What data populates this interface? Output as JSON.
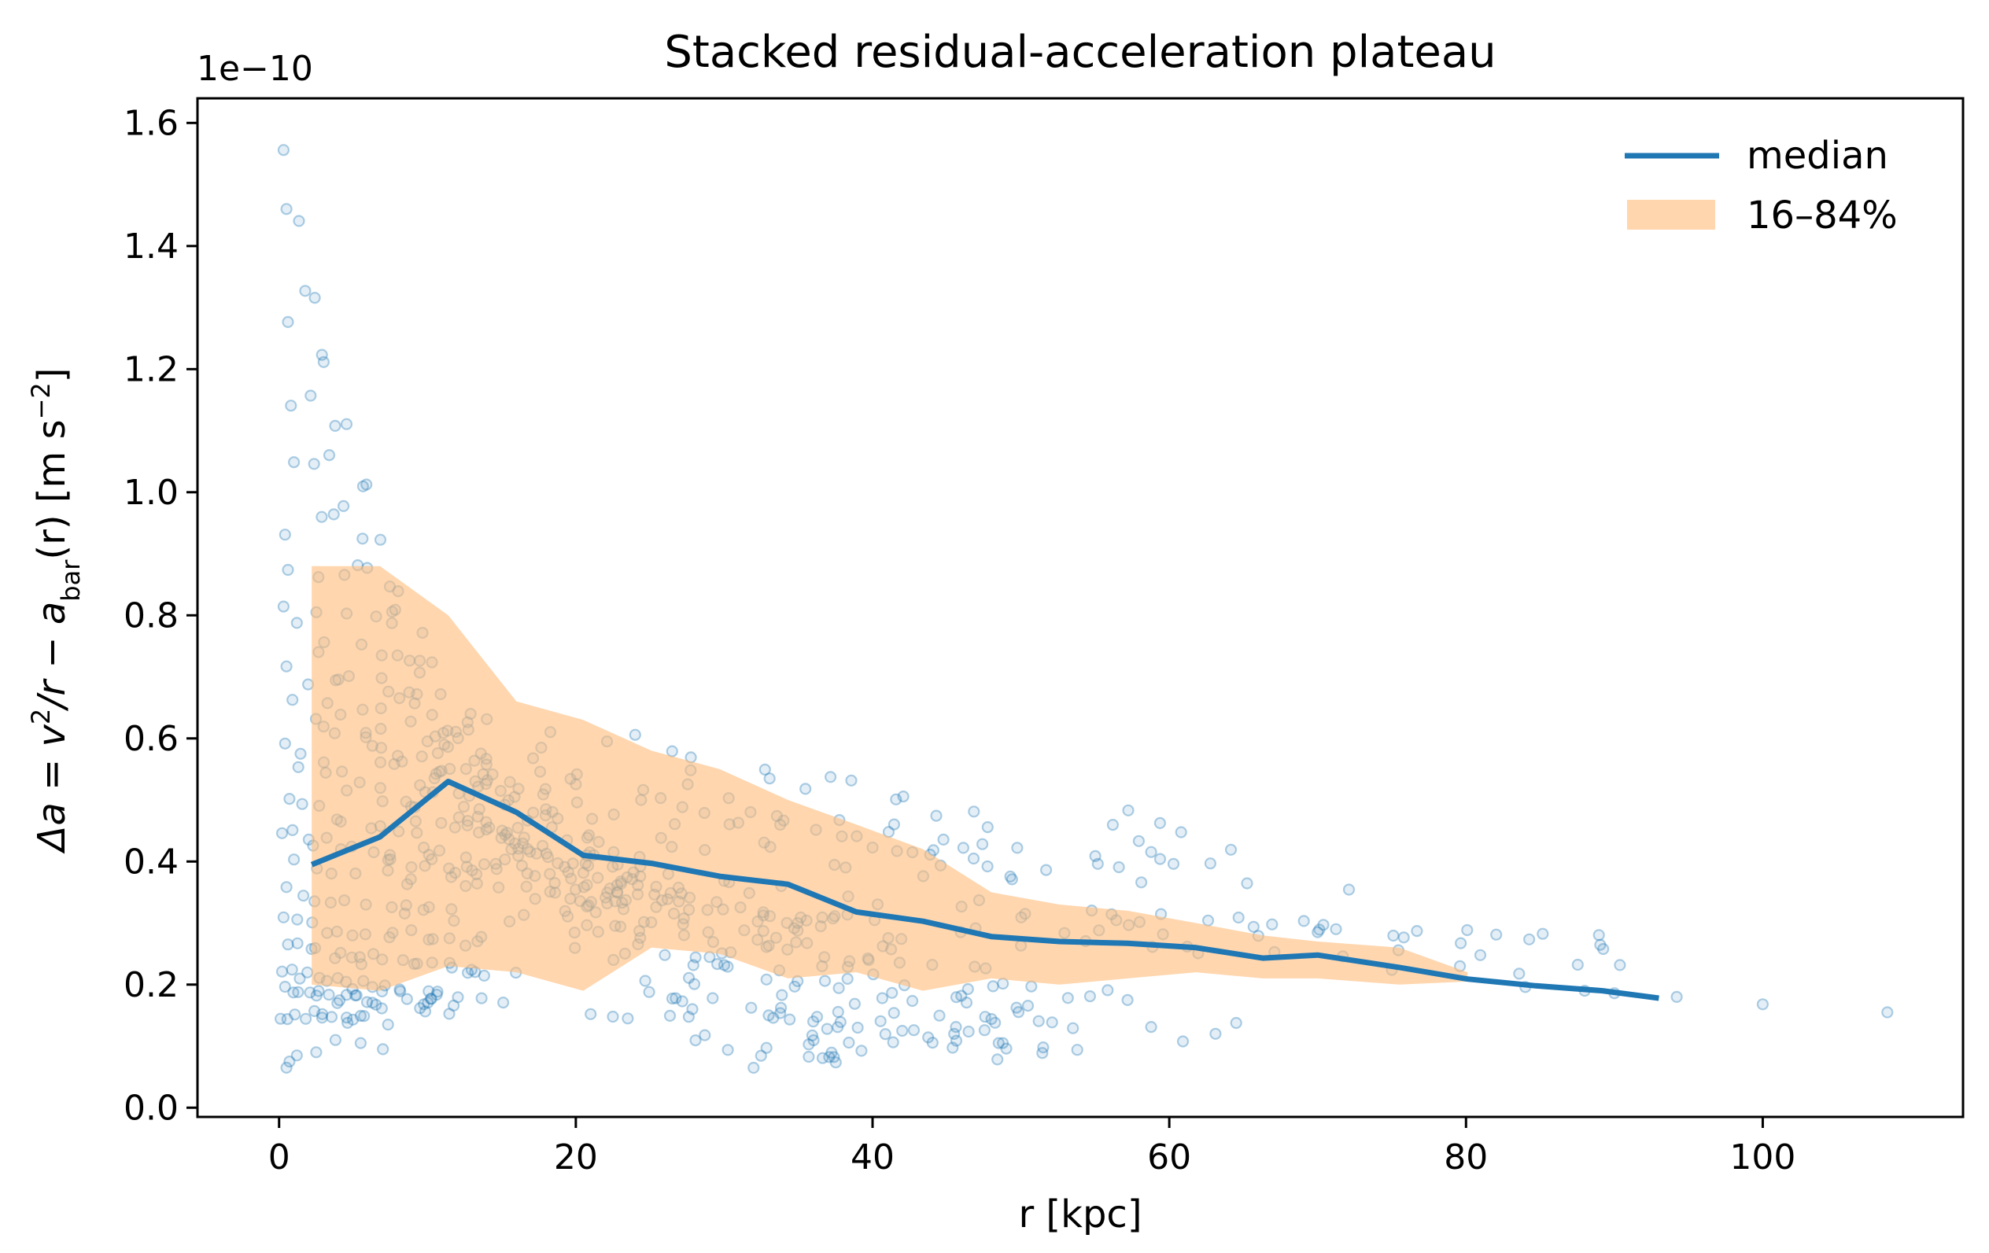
{
  "chart_data": {
    "type": "scatter",
    "title": "Stacked residual-acceleration plateau",
    "xlabel": "r  [kpc]",
    "ylabel": {
      "prefix": "Δa = v",
      "sup1": "2",
      "mid": "/r − a",
      "sub": "bar",
      "suffix": "(r)  [m s",
      "sup2": "−2",
      "end": "]"
    },
    "y_offset_text": "1e−10",
    "xlim": [
      -5.5,
      113.5
    ],
    "ylim": [
      -0.015,
      1.64
    ],
    "y_scale_factor": 1e-10,
    "x_ticks": [
      0,
      20,
      40,
      60,
      80,
      100
    ],
    "x_tick_labels": [
      "0",
      "20",
      "40",
      "60",
      "80",
      "100"
    ],
    "y_ticks": [
      0.0,
      0.2,
      0.4,
      0.6,
      0.8,
      1.0,
      1.2,
      1.4,
      1.6
    ],
    "y_tick_labels": [
      "0.0",
      "0.2",
      "0.4",
      "0.6",
      "0.8",
      "1.0",
      "1.2",
      "1.4",
      "1.6"
    ],
    "grid": false,
    "legend_position": "top-right",
    "legend": [
      {
        "label": "median",
        "kind": "line"
      },
      {
        "label": "16–84%",
        "kind": "band"
      }
    ],
    "median": {
      "name": "median",
      "color": "#1f77b4",
      "x": [
        2.2,
        6.8,
        11.4,
        16.0,
        20.5,
        25.1,
        29.7,
        34.3,
        38.9,
        43.4,
        48.0,
        52.6,
        57.2,
        61.8,
        66.3,
        70.0,
        75.5,
        80.1,
        84.7,
        89.2,
        93.0
      ],
      "y": [
        0.395,
        0.44,
        0.53,
        0.48,
        0.41,
        0.397,
        0.376,
        0.363,
        0.318,
        0.303,
        0.278,
        0.27,
        0.267,
        0.26,
        0.243,
        0.248,
        0.228,
        0.209,
        0.198,
        0.19,
        0.178
      ]
    },
    "band": {
      "name": "16–84%",
      "color": "#ffbb78",
      "opacity": 0.6,
      "x": [
        2.2,
        6.8,
        11.4,
        16.0,
        20.5,
        25.1,
        29.7,
        34.3,
        38.9,
        43.4,
        48.0,
        52.6,
        57.2,
        61.8,
        66.3,
        70.0,
        75.5,
        80.1
      ],
      "upper": [
        0.88,
        0.88,
        0.8,
        0.66,
        0.63,
        0.58,
        0.55,
        0.5,
        0.46,
        0.42,
        0.35,
        0.33,
        0.32,
        0.3,
        0.28,
        0.27,
        0.26,
        0.22
      ],
      "lower": [
        0.2,
        0.19,
        0.23,
        0.22,
        0.19,
        0.26,
        0.25,
        0.21,
        0.22,
        0.19,
        0.21,
        0.2,
        0.21,
        0.22,
        0.21,
        0.21,
        0.2,
        0.205
      ]
    },
    "scatter": {
      "name": "points",
      "color": "#1f77b4",
      "opacity": 0.25,
      "groups": [
        {
          "x0": 0.3,
          "y0": 1.56,
          "dx": 1.0,
          "n": 38,
          "decay": 0.072,
          "floor": 0.0
        },
        {
          "x0": 0.5,
          "y0": 1.46,
          "dx": 1.2,
          "n": 36,
          "decay": 0.065,
          "floor": 0.02
        },
        {
          "x0": 0.6,
          "y0": 1.27,
          "dx": 1.4,
          "n": 34,
          "decay": 0.055,
          "floor": 0.03
        },
        {
          "x0": 0.8,
          "y0": 1.15,
          "dx": 1.6,
          "n": 32,
          "decay": 0.05,
          "floor": 0.04
        },
        {
          "x0": 1.0,
          "y0": 1.05,
          "dx": 1.8,
          "n": 30,
          "decay": 0.045,
          "floor": 0.05
        },
        {
          "x0": 0.4,
          "y0": 0.94,
          "dx": 2.0,
          "n": 30,
          "decay": 0.038,
          "floor": 0.06
        },
        {
          "x0": 0.6,
          "y0": 0.88,
          "dx": 2.2,
          "n": 28,
          "decay": 0.034,
          "floor": 0.07
        },
        {
          "x0": 0.3,
          "y0": 0.82,
          "dx": 2.4,
          "n": 26,
          "decay": 0.03,
          "floor": 0.08
        },
        {
          "x0": 1.2,
          "y0": 0.78,
          "dx": 1.5,
          "n": 26,
          "decay": 0.04,
          "floor": 0.1
        },
        {
          "x0": 0.5,
          "y0": 0.72,
          "dx": 1.3,
          "n": 30,
          "decay": 0.03,
          "floor": 0.08
        },
        {
          "x0": 0.9,
          "y0": 0.66,
          "dx": 1.6,
          "n": 24,
          "decay": 0.028,
          "floor": 0.12
        },
        {
          "x0": 0.4,
          "y0": 0.6,
          "dx": 1.2,
          "n": 22,
          "decay": 0.025,
          "floor": 0.1
        },
        {
          "x0": 1.3,
          "y0": 0.56,
          "dx": 1.9,
          "n": 22,
          "decay": 0.022,
          "floor": 0.15
        },
        {
          "x0": 0.7,
          "y0": 0.5,
          "dx": 1.0,
          "n": 20,
          "decay": 0.02,
          "floor": 0.15
        },
        {
          "x0": 0.2,
          "y0": 0.45,
          "dx": 0.8,
          "n": 18,
          "decay": 0.018,
          "floor": 0.16
        },
        {
          "x0": 1.0,
          "y0": 0.4,
          "dx": 1.4,
          "n": 18,
          "decay": 0.016,
          "floor": 0.2
        },
        {
          "x0": 0.5,
          "y0": 0.35,
          "dx": 1.1,
          "n": 16,
          "decay": 0.018,
          "floor": 0.2
        },
        {
          "x0": 0.3,
          "y0": 0.3,
          "dx": 0.9,
          "n": 16,
          "decay": 0.015,
          "floor": 0.15
        },
        {
          "x0": 0.6,
          "y0": 0.26,
          "dx": 0.7,
          "n": 22,
          "decay": 0.02,
          "floor": 0.12
        },
        {
          "x0": 0.2,
          "y0": 0.22,
          "dx": 0.6,
          "n": 24,
          "decay": 0.025,
          "floor": 0.08
        },
        {
          "x0": 0.4,
          "y0": 0.19,
          "dx": 0.5,
          "n": 22,
          "decay": 0.02,
          "floor": 0.06
        },
        {
          "x0": 0.1,
          "y0": 0.15,
          "dx": 0.5,
          "n": 14,
          "decay": 0.01,
          "floor": 0.07
        },
        {
          "x0": 3.0,
          "y0": 0.62,
          "dx": 2.6,
          "n": 14,
          "decay": 0.02,
          "floor": 0.2
        },
        {
          "x0": 4.0,
          "y0": 0.7,
          "dx": 3.0,
          "n": 12,
          "decay": 0.018,
          "floor": 0.22
        },
        {
          "x0": 8.0,
          "y0": 0.58,
          "dx": 3.4,
          "n": 14,
          "decay": 0.016,
          "floor": 0.2
        },
        {
          "x0": 10.0,
          "y0": 0.6,
          "dx": 3.6,
          "n": 12,
          "decay": 0.015,
          "floor": 0.22
        },
        {
          "x0": 14.0,
          "y0": 0.64,
          "dx": 3.8,
          "n": 14,
          "decay": 0.014,
          "floor": 0.24
        },
        {
          "x0": 20.0,
          "y0": 0.52,
          "dx": 4.0,
          "n": 10,
          "decay": 0.012,
          "floor": 0.2
        },
        {
          "x0": 24.0,
          "y0": 0.6,
          "dx": 4.2,
          "n": 10,
          "decay": 0.012,
          "floor": 0.24
        },
        {
          "x0": 22.0,
          "y0": 0.34,
          "dx": 4.0,
          "n": 12,
          "decay": 0.008,
          "floor": 0.14
        },
        {
          "x0": 30.0,
          "y0": 0.36,
          "dx": 3.8,
          "n": 10,
          "decay": 0.008,
          "floor": 0.14
        },
        {
          "x0": 34.0,
          "y0": 0.47,
          "dx": 4.0,
          "n": 8,
          "decay": 0.01,
          "floor": 0.22
        },
        {
          "x0": 40.0,
          "y0": 0.42,
          "dx": 4.0,
          "n": 8,
          "decay": 0.01,
          "floor": 0.2
        },
        {
          "x0": 46.0,
          "y0": 0.32,
          "dx": 4.6,
          "n": 9,
          "decay": 0.006,
          "floor": 0.18
        },
        {
          "x0": 50.0,
          "y0": 0.27,
          "dx": 4.0,
          "n": 8,
          "decay": 0.006,
          "floor": 0.16
        },
        {
          "x0": 58.0,
          "y0": 0.3,
          "dx": 4.2,
          "n": 8,
          "decay": 0.006,
          "floor": 0.18
        },
        {
          "x0": 66.0,
          "y0": 0.28,
          "dx": 4.2,
          "n": 7,
          "decay": 0.006,
          "floor": 0.18
        },
        {
          "x0": 75.0,
          "y0": 0.23,
          "dx": 4.0,
          "n": 5,
          "decay": 0.005,
          "floor": 0.17
        }
      ],
      "extra_points": [
        {
          "x": 94.2,
          "y": 0.18
        },
        {
          "x": 100.0,
          "y": 0.168
        },
        {
          "x": 108.4,
          "y": 0.155
        },
        {
          "x": 84.0,
          "y": 0.196
        },
        {
          "x": 88.0,
          "y": 0.19
        },
        {
          "x": 90.0,
          "y": 0.186
        },
        {
          "x": 45.5,
          "y": 0.12
        },
        {
          "x": 48.5,
          "y": 0.105
        },
        {
          "x": 51.5,
          "y": 0.098
        },
        {
          "x": 53.8,
          "y": 0.094
        },
        {
          "x": 42.0,
          "y": 0.125
        },
        {
          "x": 39.0,
          "y": 0.13
        },
        {
          "x": 36.0,
          "y": 0.14
        },
        {
          "x": 33.0,
          "y": 0.15
        },
        {
          "x": 23.5,
          "y": 0.145
        },
        {
          "x": 22.5,
          "y": 0.148
        },
        {
          "x": 21.0,
          "y": 0.152
        },
        {
          "x": 2.5,
          "y": 0.09
        },
        {
          "x": 0.5,
          "y": 0.065
        },
        {
          "x": 0.7,
          "y": 0.075
        },
        {
          "x": 1.2,
          "y": 0.085
        },
        {
          "x": 3.8,
          "y": 0.11
        },
        {
          "x": 5.5,
          "y": 0.105
        },
        {
          "x": 7.0,
          "y": 0.095
        }
      ]
    }
  }
}
